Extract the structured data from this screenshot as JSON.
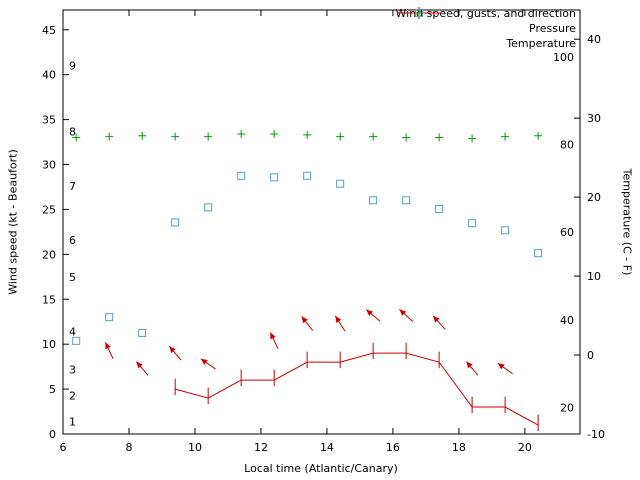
{
  "chart_data": {
    "type": "line",
    "title": "",
    "xlabel": "Local time (Atlantic/Canary)",
    "ylabel_left": "Wind speed (kt - Beaufort)",
    "ylabel_right": "Temperature (C - F)",
    "grid": false,
    "legend_position": "top-right-inside",
    "axes": {
      "x": {
        "min": 6,
        "max": 21.67,
        "ticks": [
          6,
          8,
          10,
          12,
          14,
          16,
          18,
          20
        ]
      },
      "y_left_kt": {
        "min": 0,
        "max": 47.2,
        "ticks": [
          0,
          5,
          10,
          15,
          20,
          25,
          30,
          35,
          40,
          45
        ]
      },
      "y_right_C": {
        "min": -10,
        "max": 43.7,
        "ticks": [
          -10,
          0,
          10,
          20,
          30,
          40
        ]
      },
      "beaufort_inner_labels": [
        {
          "label": "1",
          "kt": 1.4
        },
        {
          "label": "2",
          "kt": 4.3
        },
        {
          "label": "3",
          "kt": 7.2
        },
        {
          "label": "4",
          "kt": 11.4
        },
        {
          "label": "5",
          "kt": 17.5
        },
        {
          "label": "6",
          "kt": 21.6
        },
        {
          "label": "7",
          "kt": 27.6
        },
        {
          "label": "8",
          "kt": 33.7
        },
        {
          "label": "9",
          "kt": 41.0
        }
      ],
      "fahrenheit_inner_labels": [
        {
          "label": "20",
          "F": 20
        },
        {
          "label": "40",
          "F": 40
        },
        {
          "label": "60",
          "F": 60
        },
        {
          "label": "80",
          "F": 80
        },
        {
          "label": "100",
          "F": 100
        }
      ]
    },
    "legend": [
      {
        "label": "Wind speed, gusts, and direction",
        "color": "#cc0000",
        "marker": "errorbar-line"
      },
      {
        "label": "Pressure",
        "color": "#00a000",
        "marker": "plus"
      },
      {
        "label": "Temperature",
        "color": "#569ed1",
        "marker": "open-square"
      }
    ],
    "series": {
      "wind_speed": {
        "name": "Wind speed (kt)",
        "color": "#cc0000",
        "x": [
          9.4,
          10.4,
          11.4,
          12.4,
          13.4,
          14.4,
          15.4,
          16.4,
          17.4,
          18.4,
          19.4,
          20.4
        ],
        "speed_kt": [
          5,
          4,
          6,
          6,
          8,
          8,
          9,
          9,
          8,
          3,
          3,
          1
        ],
        "gust_kt": [
          5.5,
          4.5,
          6.5,
          6.5,
          8.5,
          8.5,
          9.5,
          9.5,
          8.5,
          3.5,
          3.5,
          1.5
        ]
      },
      "wind_direction_arrows": {
        "name": "Wind direction",
        "color": "#cc0000",
        "points": [
          {
            "x": 7.4,
            "kt": 9.3,
            "angle_deg": 115
          },
          {
            "x": 8.4,
            "kt": 7.3,
            "angle_deg": 130
          },
          {
            "x": 9.4,
            "kt": 9.0,
            "angle_deg": 130
          },
          {
            "x": 10.4,
            "kt": 7.8,
            "angle_deg": 145
          },
          {
            "x": 12.4,
            "kt": 10.4,
            "angle_deg": 115
          },
          {
            "x": 13.4,
            "kt": 12.3,
            "angle_deg": 128
          },
          {
            "x": 14.4,
            "kt": 12.3,
            "angle_deg": 122
          },
          {
            "x": 15.4,
            "kt": 13.2,
            "angle_deg": 140
          },
          {
            "x": 16.4,
            "kt": 13.2,
            "angle_deg": 138
          },
          {
            "x": 17.4,
            "kt": 12.4,
            "angle_deg": 132
          },
          {
            "x": 18.4,
            "kt": 7.3,
            "angle_deg": 130
          },
          {
            "x": 19.4,
            "kt": 7.3,
            "angle_deg": 145
          }
        ]
      },
      "pressure": {
        "name": "Pressure",
        "color": "#00a000",
        "note": "no pressure axis labels visible; vertical positions recorded in left-axis units",
        "x": [
          6.4,
          7.4,
          8.4,
          9.4,
          10.4,
          11.4,
          12.4,
          13.4,
          14.4,
          15.4,
          16.4,
          17.4,
          18.4,
          19.4,
          20.4
        ],
        "y_left_axis_units": [
          33.0,
          33.1,
          33.2,
          33.1,
          33.1,
          33.4,
          33.4,
          33.3,
          33.1,
          33.1,
          33.0,
          33.0,
          32.9,
          33.1,
          33.2
        ]
      },
      "temperature": {
        "name": "Temperature (C)",
        "color": "#569ed1",
        "x": [
          6.4,
          7.4,
          8.4,
          9.4,
          10.4,
          11.4,
          12.4,
          13.4,
          14.4,
          15.4,
          16.4,
          17.4,
          18.4,
          19.4,
          20.4
        ],
        "temp_C": [
          1.8,
          4.8,
          2.8,
          16.8,
          18.7,
          22.7,
          22.5,
          22.7,
          21.7,
          19.6,
          19.6,
          18.5,
          16.7,
          15.8,
          12.9
        ]
      }
    }
  }
}
